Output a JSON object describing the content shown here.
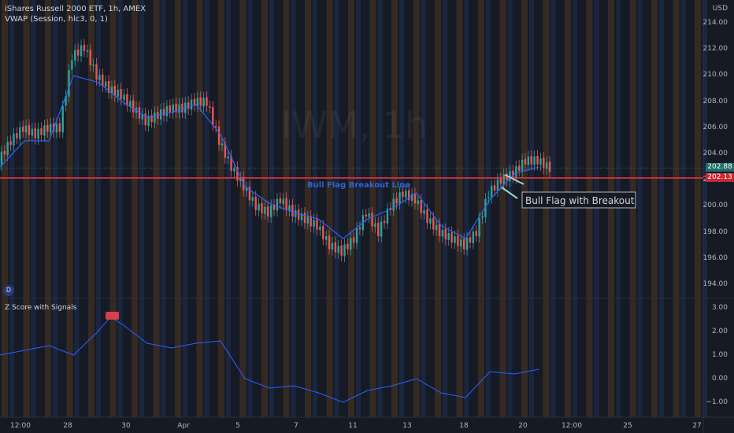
{
  "header": {
    "symbol_line": "iShares Russell 2000 ETF, 1h, AMEX",
    "indicator_line": "VWAP (Session, hlc3, 0, 1)",
    "watermark": "IWM, 1h",
    "currency": "USD"
  },
  "price_axis": [
    "214.00",
    "212.00",
    "210.00",
    "208.00",
    "206.00",
    "204.00",
    "202.00",
    "200.00",
    "198.00",
    "196.00",
    "194.00"
  ],
  "price_tags": {
    "last": "202.88",
    "line": "202.13"
  },
  "zscore": {
    "title": "Z Score with Signals",
    "axis": [
      "3.00",
      "2.00",
      "1.00",
      "0.00",
      "−1.00"
    ]
  },
  "time_axis": [
    "12:00",
    "28",
    "30",
    "Apr",
    "5",
    "7",
    "11",
    "13",
    "18",
    "20",
    "12:00",
    "25",
    "27"
  ],
  "annotations": {
    "breakout_line": "Bull Flag Breakout Line",
    "flag_label": "Bull Flag with Breakout"
  },
  "badge": "D",
  "colors": {
    "background": "#161a25",
    "up": "#26a69a",
    "down": "#ef5350",
    "vwap": "#2962ff",
    "breakout": "#f23645",
    "zscore": "#2962ff",
    "orange_band": "#7a4a20",
    "blue_band": "#233a6a"
  },
  "chart_data": {
    "type": "line",
    "series": [
      {
        "name": "iShares Russell 2000 ETF, 1h, AMEX",
        "x": [
          0,
          4,
          8,
          12,
          16,
          20,
          24,
          28,
          32,
          36,
          40,
          44,
          48,
          52,
          56,
          60,
          64,
          68,
          72,
          76,
          80,
          84,
          88,
          92,
          96,
          100,
          104,
          108,
          112,
          116,
          120,
          124,
          128,
          132,
          136,
          140,
          144,
          148,
          152,
          156,
          160,
          164,
          168,
          172,
          176,
          180
        ],
        "values": [
          203.5,
          205.0,
          206.0,
          205.5,
          206.0,
          206.0,
          211.5,
          212.2,
          210.0,
          209.0,
          208.5,
          207.5,
          206.5,
          207.0,
          207.5,
          207.5,
          208.0,
          208.0,
          205.0,
          203.0,
          201.5,
          200.0,
          199.5,
          200.5,
          199.5,
          199.0,
          198.5,
          197.0,
          196.5,
          197.5,
          199.5,
          198.0,
          200.0,
          201.0,
          200.5,
          199.0,
          198.0,
          197.5,
          197.0,
          198.0,
          201.0,
          202.0,
          202.5,
          203.5,
          203.5,
          202.9
        ]
      },
      {
        "name": "VWAP (Session, hlc3, 0, 1)",
        "x": [
          0,
          8,
          16,
          24,
          32,
          40,
          48,
          56,
          64,
          72,
          80,
          88,
          96,
          104,
          112,
          120,
          128,
          136,
          144,
          152,
          160,
          168,
          176
        ],
        "values": [
          203.0,
          205.0,
          205.0,
          210.0,
          209.5,
          208.0,
          206.8,
          207.2,
          207.8,
          205.5,
          201.5,
          200.2,
          199.5,
          199.0,
          197.5,
          199.0,
          199.8,
          201.0,
          198.5,
          197.5,
          200.5,
          202.5,
          203.0
        ]
      },
      {
        "name": "Z Score with Signals",
        "x": [
          0,
          8,
          16,
          24,
          32,
          36,
          40,
          48,
          56,
          64,
          72,
          80,
          88,
          96,
          104,
          112,
          120,
          128,
          136,
          144,
          152,
          160,
          168,
          176
        ],
        "values": [
          1.0,
          1.2,
          1.4,
          1.0,
          2.0,
          2.6,
          2.3,
          1.5,
          1.3,
          1.5,
          1.6,
          0.0,
          -0.4,
          -0.3,
          -0.6,
          -1.0,
          -0.5,
          -0.3,
          0.0,
          -0.6,
          -0.8,
          0.3,
          0.2,
          0.4
        ]
      }
    ],
    "ylim": [
      193.5,
      215
    ],
    "zlim": [
      -1.5,
      3.3
    ]
  }
}
